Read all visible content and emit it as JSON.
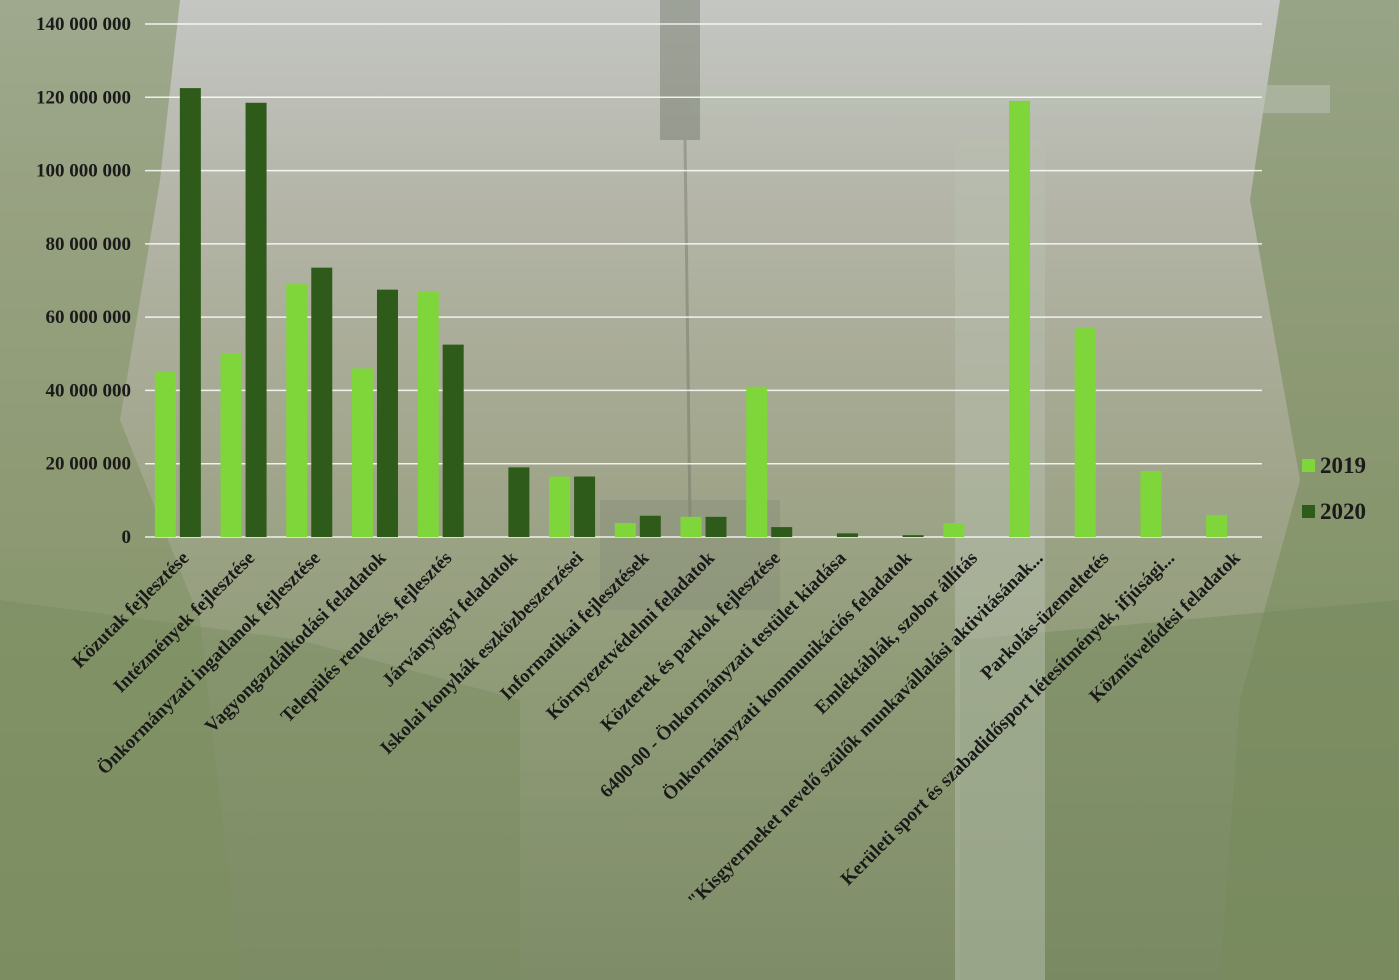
{
  "chart_data": {
    "type": "bar",
    "title": "",
    "xlabel": "",
    "ylabel": "",
    "ylim": [
      0,
      140000000
    ],
    "yticks": [
      0,
      20000000,
      40000000,
      60000000,
      80000000,
      100000000,
      120000000,
      140000000
    ],
    "ytick_labels": [
      "0",
      "20 000 000",
      "40 000 000",
      "60 000 000",
      "80 000 000",
      "100 000 000",
      "120 000 000",
      "140 000 000"
    ],
    "grid": true,
    "legend_position": "right",
    "categories": [
      "Közutak fejlesztése",
      "Intézmények fejlesztése",
      "Önkormányzati ingatlanok fejlesztése",
      "Vagyongazdálkodási feladatok",
      "Település rendezés, fejlesztés",
      "Járványügyi feladatok",
      "Iskolai konyhák eszközbeszerzései",
      "Informatikai fejlesztések",
      "Környezetvédelmi feladatok",
      "Közterek és parkok fejlesztése",
      "6400-00 -   Önkormányzati testület kiadása",
      "Önkormányzati kommunikációs feladatok",
      "Emléktáblák, szobor állítás",
      "\"Kisgyermeket nevelő szülők munkavállalási aktivitásának...",
      "Parkolás-üzemeltetés",
      "Kerületi sport és szabadidősport létesítmények, ifjúsági...",
      "Közművelődési feladatok"
    ],
    "series": [
      {
        "name": "2019",
        "color": "#7fd63a",
        "values": [
          45000000,
          50000000,
          69000000,
          46000000,
          67000000,
          0,
          16500000,
          3800000,
          5500000,
          41000000,
          0,
          0,
          3800000,
          119000000,
          57000000,
          18000000,
          6000000
        ]
      },
      {
        "name": "2020",
        "color": "#2e5a1a",
        "values": [
          122500000,
          118500000,
          73500000,
          67500000,
          52500000,
          19000000,
          16500000,
          5800000,
          5500000,
          2700000,
          1000000,
          500000,
          0,
          0,
          0,
          0,
          0
        ]
      }
    ]
  }
}
